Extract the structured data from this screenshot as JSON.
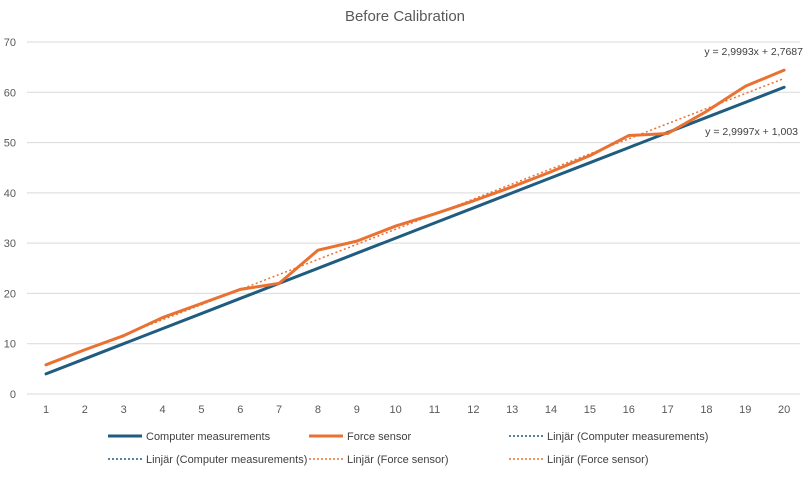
{
  "chart_data": {
    "type": "line",
    "title": "Before Calibration",
    "categories": [
      "1",
      "2",
      "3",
      "4",
      "5",
      "6",
      "7",
      "8",
      "9",
      "10",
      "11",
      "12",
      "13",
      "14",
      "15",
      "16",
      "17",
      "18",
      "19",
      "20"
    ],
    "ylim": [
      0,
      70
    ],
    "yticks": [
      "0",
      "10",
      "20",
      "30",
      "40",
      "50",
      "60",
      "70"
    ],
    "grid": true,
    "legend_position": "bottom",
    "series": [
      {
        "name": "Computer measurements",
        "color": "#1f5c80",
        "values": [
          4,
          7,
          10,
          13,
          16,
          19,
          22,
          25,
          28,
          31,
          34,
          37,
          40,
          43,
          46,
          49,
          52,
          55,
          58,
          61
        ]
      },
      {
        "name": "Force sensor",
        "color": "#e97132",
        "values": [
          5.8,
          8.8,
          11.6,
          15.2,
          18,
          20.8,
          22,
          28.6,
          30.4,
          33.4,
          35.8,
          38.4,
          41.2,
          44.2,
          47.4,
          51.4,
          51.8,
          56.2,
          61.2,
          64.4
        ]
      }
    ],
    "trendlines": [
      {
        "name": "Linjär (Computer measurements)",
        "color": "#1f5c80",
        "slope": 2.9997,
        "intercept": 1.003,
        "equation": "y = 2,9997x + 1,003"
      },
      {
        "name": "Linjär (Force sensor)",
        "color": "#e97132",
        "slope": 2.9993,
        "intercept": 2.7687,
        "equation": "y = 2,9993x + 2,7687"
      }
    ],
    "legend": [
      {
        "label": "Computer measurements",
        "style": "solid",
        "color": "#1f5c80"
      },
      {
        "label": "Force sensor",
        "style": "solid",
        "color": "#e97132"
      },
      {
        "label": "Linjär (Computer measurements)",
        "style": "dotted",
        "color": "#1f5c80"
      },
      {
        "label": "Linjär (Computer measurements)",
        "style": "dotted",
        "color": "#1f5c80"
      },
      {
        "label": "Linjär (Force sensor)",
        "style": "dotted",
        "color": "#e97132"
      },
      {
        "label": "Linjär (Force sensor)",
        "style": "dotted",
        "color": "#e97132"
      }
    ]
  }
}
